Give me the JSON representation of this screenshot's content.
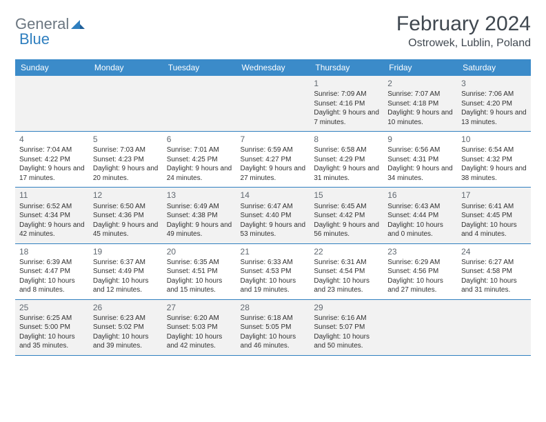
{
  "logo": {
    "text1": "General",
    "text2": "Blue"
  },
  "title": "February 2024",
  "location": "Ostrowek, Lublin, Poland",
  "weekdays": [
    "Sunday",
    "Monday",
    "Tuesday",
    "Wednesday",
    "Thursday",
    "Friday",
    "Saturday"
  ],
  "colors": {
    "header_bg": "#3b8bc9",
    "header_text": "#ffffff",
    "border": "#2f7fbf",
    "alt_bg": "#f2f2f2",
    "title_color": "#404850",
    "logo_gray": "#6b7680",
    "logo_blue": "#2f7fbf",
    "body_text": "#303030"
  },
  "weeks": [
    [
      null,
      null,
      null,
      null,
      {
        "n": "1",
        "sr": "7:09 AM",
        "ss": "4:16 PM",
        "dl": "9 hours and 7 minutes."
      },
      {
        "n": "2",
        "sr": "7:07 AM",
        "ss": "4:18 PM",
        "dl": "9 hours and 10 minutes."
      },
      {
        "n": "3",
        "sr": "7:06 AM",
        "ss": "4:20 PM",
        "dl": "9 hours and 13 minutes."
      }
    ],
    [
      {
        "n": "4",
        "sr": "7:04 AM",
        "ss": "4:22 PM",
        "dl": "9 hours and 17 minutes."
      },
      {
        "n": "5",
        "sr": "7:03 AM",
        "ss": "4:23 PM",
        "dl": "9 hours and 20 minutes."
      },
      {
        "n": "6",
        "sr": "7:01 AM",
        "ss": "4:25 PM",
        "dl": "9 hours and 24 minutes."
      },
      {
        "n": "7",
        "sr": "6:59 AM",
        "ss": "4:27 PM",
        "dl": "9 hours and 27 minutes."
      },
      {
        "n": "8",
        "sr": "6:58 AM",
        "ss": "4:29 PM",
        "dl": "9 hours and 31 minutes."
      },
      {
        "n": "9",
        "sr": "6:56 AM",
        "ss": "4:31 PM",
        "dl": "9 hours and 34 minutes."
      },
      {
        "n": "10",
        "sr": "6:54 AM",
        "ss": "4:32 PM",
        "dl": "9 hours and 38 minutes."
      }
    ],
    [
      {
        "n": "11",
        "sr": "6:52 AM",
        "ss": "4:34 PM",
        "dl": "9 hours and 42 minutes."
      },
      {
        "n": "12",
        "sr": "6:50 AM",
        "ss": "4:36 PM",
        "dl": "9 hours and 45 minutes."
      },
      {
        "n": "13",
        "sr": "6:49 AM",
        "ss": "4:38 PM",
        "dl": "9 hours and 49 minutes."
      },
      {
        "n": "14",
        "sr": "6:47 AM",
        "ss": "4:40 PM",
        "dl": "9 hours and 53 minutes."
      },
      {
        "n": "15",
        "sr": "6:45 AM",
        "ss": "4:42 PM",
        "dl": "9 hours and 56 minutes."
      },
      {
        "n": "16",
        "sr": "6:43 AM",
        "ss": "4:44 PM",
        "dl": "10 hours and 0 minutes."
      },
      {
        "n": "17",
        "sr": "6:41 AM",
        "ss": "4:45 PM",
        "dl": "10 hours and 4 minutes."
      }
    ],
    [
      {
        "n": "18",
        "sr": "6:39 AM",
        "ss": "4:47 PM",
        "dl": "10 hours and 8 minutes."
      },
      {
        "n": "19",
        "sr": "6:37 AM",
        "ss": "4:49 PM",
        "dl": "10 hours and 12 minutes."
      },
      {
        "n": "20",
        "sr": "6:35 AM",
        "ss": "4:51 PM",
        "dl": "10 hours and 15 minutes."
      },
      {
        "n": "21",
        "sr": "6:33 AM",
        "ss": "4:53 PM",
        "dl": "10 hours and 19 minutes."
      },
      {
        "n": "22",
        "sr": "6:31 AM",
        "ss": "4:54 PM",
        "dl": "10 hours and 23 minutes."
      },
      {
        "n": "23",
        "sr": "6:29 AM",
        "ss": "4:56 PM",
        "dl": "10 hours and 27 minutes."
      },
      {
        "n": "24",
        "sr": "6:27 AM",
        "ss": "4:58 PM",
        "dl": "10 hours and 31 minutes."
      }
    ],
    [
      {
        "n": "25",
        "sr": "6:25 AM",
        "ss": "5:00 PM",
        "dl": "10 hours and 35 minutes."
      },
      {
        "n": "26",
        "sr": "6:23 AM",
        "ss": "5:02 PM",
        "dl": "10 hours and 39 minutes."
      },
      {
        "n": "27",
        "sr": "6:20 AM",
        "ss": "5:03 PM",
        "dl": "10 hours and 42 minutes."
      },
      {
        "n": "28",
        "sr": "6:18 AM",
        "ss": "5:05 PM",
        "dl": "10 hours and 46 minutes."
      },
      {
        "n": "29",
        "sr": "6:16 AM",
        "ss": "5:07 PM",
        "dl": "10 hours and 50 minutes."
      },
      null,
      null
    ]
  ],
  "labels": {
    "sunrise": "Sunrise: ",
    "sunset": "Sunset: ",
    "daylight": "Daylight: "
  }
}
